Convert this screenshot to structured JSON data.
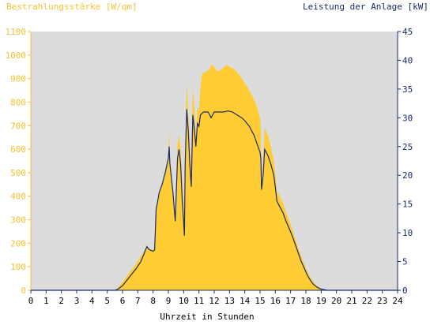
{
  "colors": {
    "plot_background": "#dcdcdc",
    "irradiance_fill": "#ffcc33",
    "irradiance_text": "#f5c232",
    "power_line": "#1a2a6c",
    "power_text": "#1a2a6c",
    "axis_text": "#000000"
  },
  "chart_data": {
    "type": "area",
    "title": "",
    "xlabel": "Uhrzeit in Stunden",
    "ylabel_left": "Bestrahlungsstärke [W/qm]",
    "ylabel_right": "Leistung der Anlage [kW]",
    "xlim": [
      0,
      24
    ],
    "ylim_left": [
      0,
      1100
    ],
    "ylim_right": [
      0,
      45
    ],
    "x_ticks": [
      "0",
      "1",
      "2",
      "3",
      "4",
      "5",
      "6",
      "7",
      "8",
      "9",
      "10",
      "11",
      "12",
      "13",
      "14",
      "15",
      "16",
      "17",
      "18",
      "19",
      "20",
      "21",
      "22",
      "23",
      "24"
    ],
    "y_ticks_left": [
      "0",
      "100",
      "200",
      "300",
      "400",
      "500",
      "600",
      "700",
      "800",
      "900",
      "1000",
      "1100"
    ],
    "y_ticks_right": [
      "0",
      "5",
      "10",
      "15",
      "20",
      "25",
      "30",
      "35",
      "40",
      "45"
    ],
    "grid": false,
    "series": [
      {
        "name": "Bestrahlungsstärke [W/qm]",
        "axis": "left",
        "style": "area",
        "points": [
          [
            0,
            0
          ],
          [
            5.4,
            0
          ],
          [
            5.6,
            5
          ],
          [
            5.8,
            18
          ],
          [
            6.0,
            35
          ],
          [
            6.2,
            55
          ],
          [
            6.5,
            80
          ],
          [
            6.8,
            105
          ],
          [
            7.0,
            125
          ],
          [
            7.2,
            145
          ],
          [
            7.4,
            165
          ],
          [
            7.6,
            185
          ],
          [
            7.8,
            175
          ],
          [
            8.0,
            170
          ],
          [
            8.1,
            180
          ],
          [
            8.2,
            350
          ],
          [
            8.4,
            410
          ],
          [
            8.6,
            450
          ],
          [
            8.8,
            500
          ],
          [
            9.0,
            560
          ],
          [
            9.05,
            690
          ],
          [
            9.1,
            560
          ],
          [
            9.3,
            430
          ],
          [
            9.45,
            320
          ],
          [
            9.5,
            400
          ],
          [
            9.6,
            620
          ],
          [
            9.7,
            660
          ],
          [
            9.8,
            600
          ],
          [
            9.9,
            480
          ],
          [
            10.0,
            380
          ],
          [
            10.05,
            260
          ],
          [
            10.1,
            600
          ],
          [
            10.2,
            880
          ],
          [
            10.3,
            760
          ],
          [
            10.4,
            620
          ],
          [
            10.5,
            500
          ],
          [
            10.6,
            860
          ],
          [
            10.7,
            780
          ],
          [
            10.8,
            650
          ],
          [
            10.9,
            780
          ],
          [
            11.0,
            760
          ],
          [
            11.1,
            860
          ],
          [
            11.2,
            920
          ],
          [
            11.5,
            930
          ],
          [
            11.7,
            940
          ],
          [
            11.8,
            960
          ],
          [
            12.0,
            950
          ],
          [
            12.2,
            930
          ],
          [
            12.5,
            940
          ],
          [
            12.8,
            960
          ],
          [
            13.0,
            950
          ],
          [
            13.3,
            940
          ],
          [
            13.6,
            920
          ],
          [
            14.0,
            880
          ],
          [
            14.3,
            850
          ],
          [
            14.6,
            810
          ],
          [
            14.8,
            780
          ],
          [
            15.0,
            730
          ],
          [
            15.05,
            680
          ],
          [
            15.1,
            460
          ],
          [
            15.2,
            550
          ],
          [
            15.3,
            690
          ],
          [
            15.5,
            660
          ],
          [
            15.7,
            610
          ],
          [
            15.9,
            550
          ],
          [
            16.0,
            500
          ],
          [
            16.1,
            420
          ],
          [
            16.3,
            400
          ],
          [
            16.5,
            370
          ],
          [
            16.7,
            330
          ],
          [
            16.9,
            300
          ],
          [
            17.1,
            260
          ],
          [
            17.3,
            220
          ],
          [
            17.5,
            180
          ],
          [
            17.7,
            145
          ],
          [
            17.9,
            110
          ],
          [
            18.1,
            80
          ],
          [
            18.3,
            55
          ],
          [
            18.5,
            35
          ],
          [
            18.7,
            20
          ],
          [
            18.9,
            10
          ],
          [
            19.1,
            5
          ],
          [
            19.3,
            2
          ],
          [
            19.6,
            0
          ],
          [
            24,
            0
          ]
        ]
      },
      {
        "name": "Leistung der Anlage [kW]",
        "axis": "right",
        "style": "line",
        "points": [
          [
            0,
            0
          ],
          [
            5.5,
            0
          ],
          [
            5.7,
            0.2
          ],
          [
            6.0,
            0.8
          ],
          [
            6.3,
            1.8
          ],
          [
            6.6,
            2.8
          ],
          [
            6.9,
            3.8
          ],
          [
            7.2,
            5.0
          ],
          [
            7.4,
            6.3
          ],
          [
            7.5,
            7.0
          ],
          [
            7.6,
            7.6
          ],
          [
            7.7,
            7.2
          ],
          [
            7.8,
            7.0
          ],
          [
            8.0,
            6.8
          ],
          [
            8.1,
            7.0
          ],
          [
            8.2,
            14.0
          ],
          [
            8.4,
            17.0
          ],
          [
            8.6,
            18.5
          ],
          [
            8.8,
            20.5
          ],
          [
            9.0,
            23.0
          ],
          [
            9.05,
            25.0
          ],
          [
            9.1,
            22.0
          ],
          [
            9.3,
            17.0
          ],
          [
            9.45,
            12.0
          ],
          [
            9.6,
            23.0
          ],
          [
            9.7,
            24.5
          ],
          [
            9.8,
            22.0
          ],
          [
            9.9,
            16.0
          ],
          [
            10.0,
            12.0
          ],
          [
            10.05,
            9.5
          ],
          [
            10.1,
            22.0
          ],
          [
            10.2,
            31.5
          ],
          [
            10.3,
            28.0
          ],
          [
            10.4,
            22.0
          ],
          [
            10.5,
            18.0
          ],
          [
            10.6,
            30.5
          ],
          [
            10.7,
            28.0
          ],
          [
            10.8,
            25.0
          ],
          [
            10.9,
            29.0
          ],
          [
            11.0,
            28.5
          ],
          [
            11.1,
            30.5
          ],
          [
            11.3,
            31.0
          ],
          [
            11.6,
            31.0
          ],
          [
            11.8,
            30.0
          ],
          [
            12.0,
            31.0
          ],
          [
            12.3,
            31.0
          ],
          [
            12.6,
            31.0
          ],
          [
            12.9,
            31.2
          ],
          [
            13.2,
            31.0
          ],
          [
            13.5,
            30.5
          ],
          [
            13.8,
            30.0
          ],
          [
            14.0,
            29.5
          ],
          [
            14.3,
            28.5
          ],
          [
            14.6,
            27.0
          ],
          [
            14.8,
            25.5
          ],
          [
            15.0,
            24.0
          ],
          [
            15.05,
            23.0
          ],
          [
            15.1,
            17.5
          ],
          [
            15.2,
            20.0
          ],
          [
            15.3,
            24.5
          ],
          [
            15.5,
            23.5
          ],
          [
            15.7,
            22.0
          ],
          [
            15.9,
            20.0
          ],
          [
            16.0,
            18.0
          ],
          [
            16.1,
            15.5
          ],
          [
            16.3,
            14.5
          ],
          [
            16.5,
            13.5
          ],
          [
            16.7,
            12.0
          ],
          [
            16.9,
            10.8
          ],
          [
            17.1,
            9.5
          ],
          [
            17.3,
            8.0
          ],
          [
            17.5,
            6.5
          ],
          [
            17.7,
            5.0
          ],
          [
            17.9,
            3.8
          ],
          [
            18.1,
            2.6
          ],
          [
            18.3,
            1.7
          ],
          [
            18.5,
            1.0
          ],
          [
            18.7,
            0.6
          ],
          [
            18.9,
            0.3
          ],
          [
            19.1,
            0.15
          ],
          [
            19.4,
            0.0
          ],
          [
            24,
            0
          ]
        ]
      }
    ]
  }
}
